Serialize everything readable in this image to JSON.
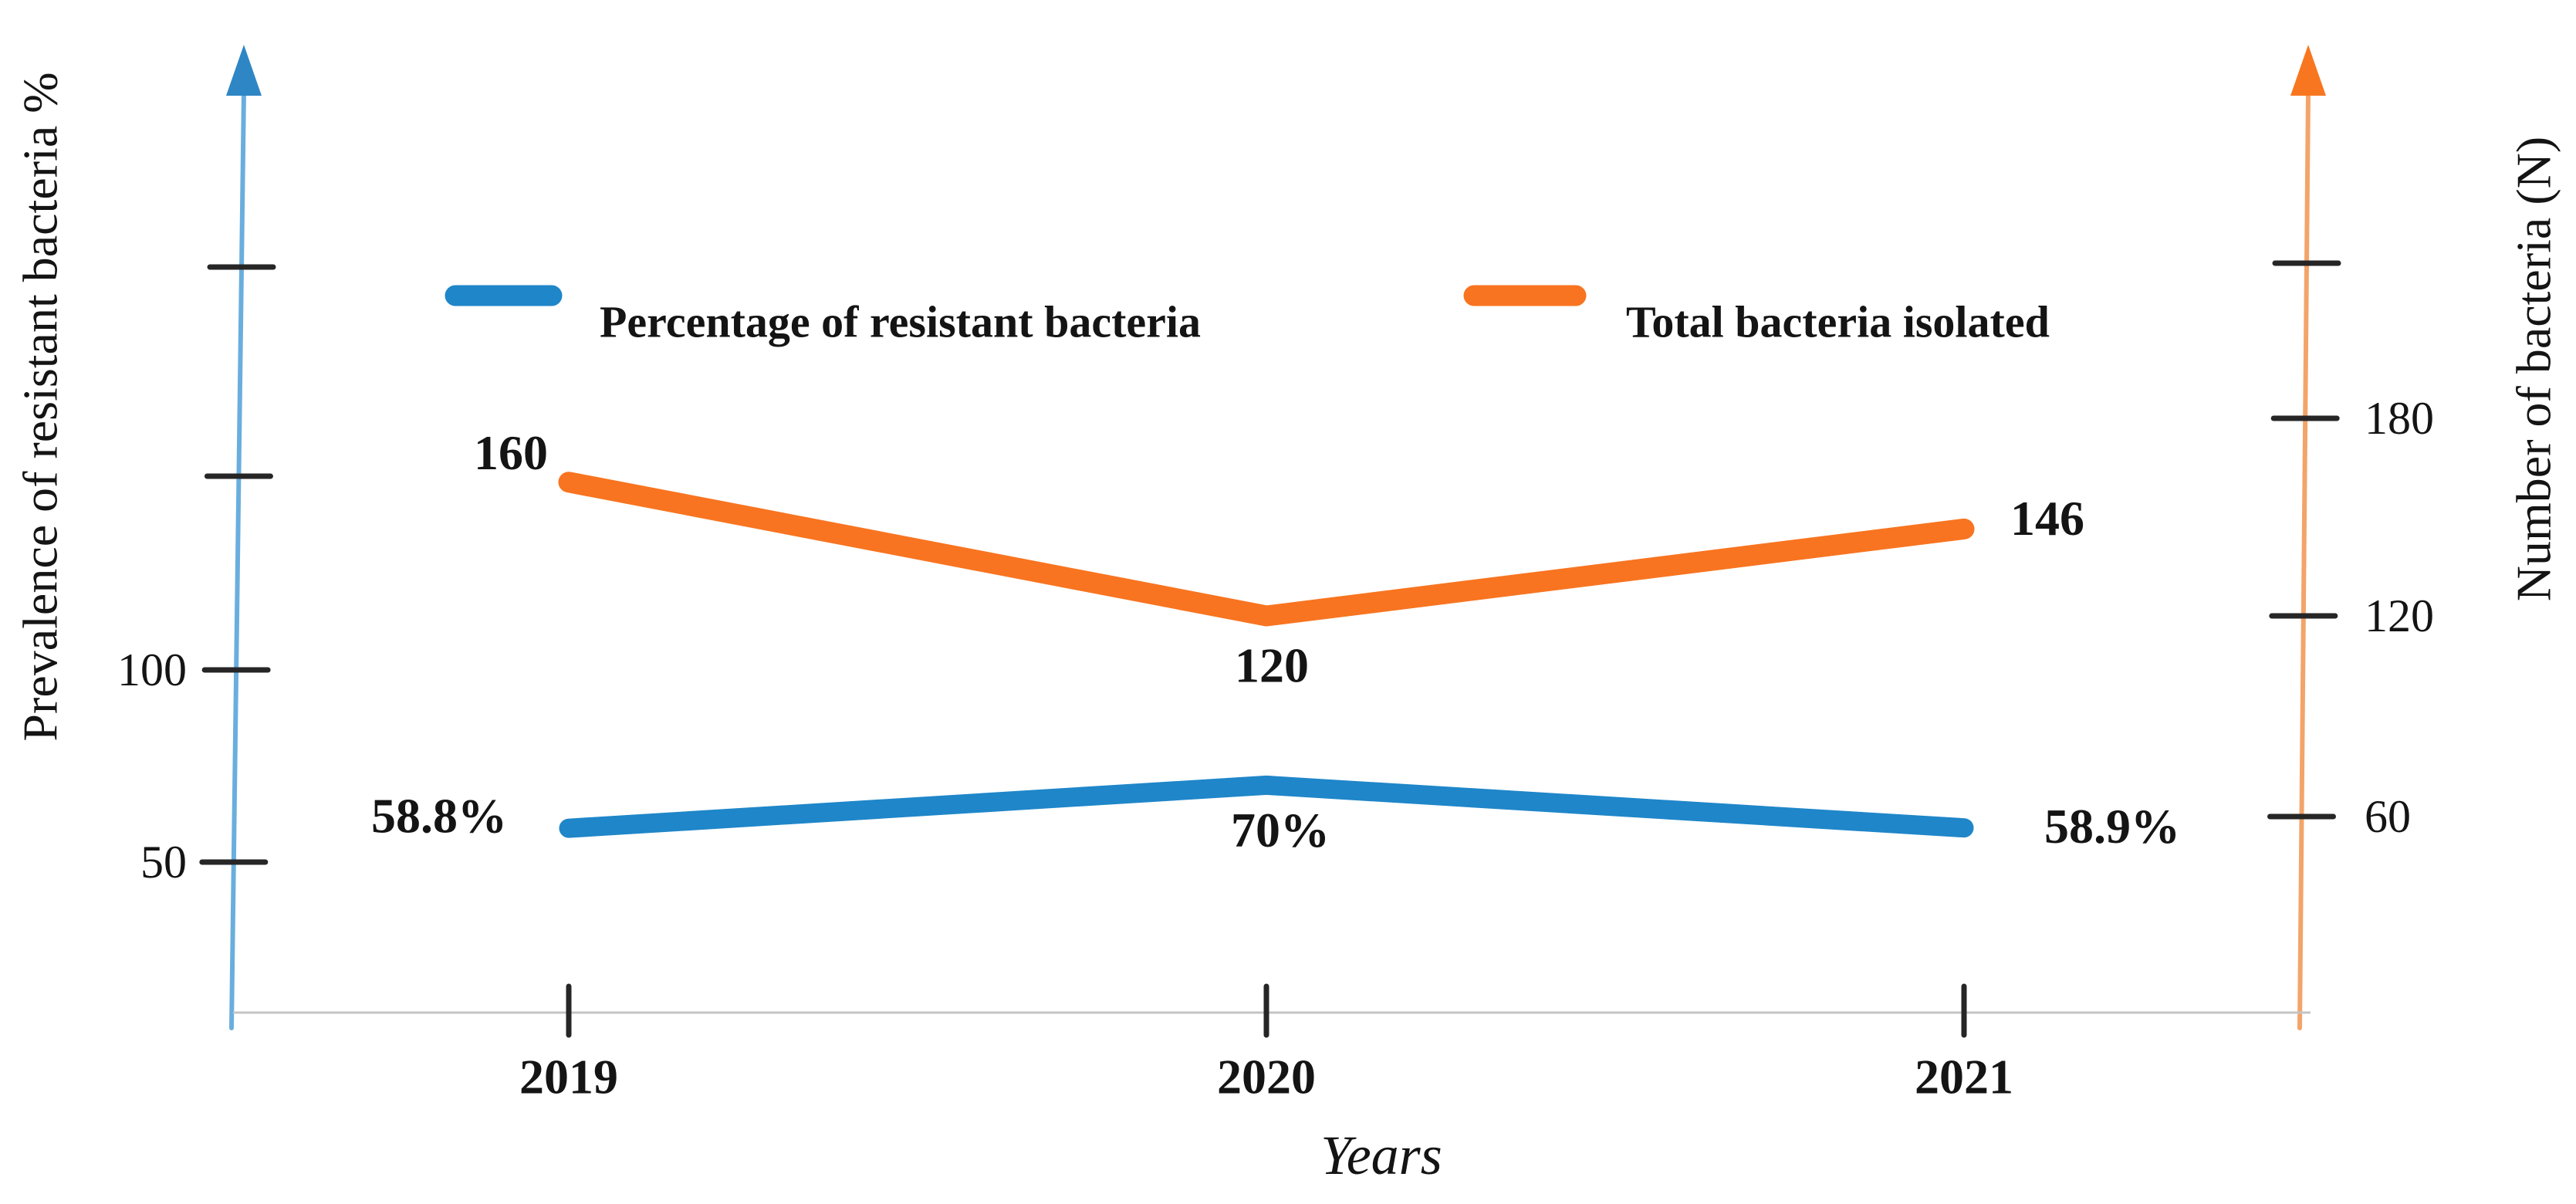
{
  "chart_data": {
    "type": "line",
    "categories": [
      "2019",
      "2020",
      "2021"
    ],
    "xlabel": "Years",
    "grid": false,
    "legend_position": "top-inside",
    "series": [
      {
        "name": "Percentage of resistant bacteria",
        "axis": "left",
        "values": [
          58.8,
          70,
          58.9
        ],
        "point_labels": [
          "58.8%",
          "70%",
          "58.9%"
        ],
        "color": "#1f86c9"
      },
      {
        "name": "Total bacteria isolated",
        "axis": "right",
        "values": [
          160,
          120,
          146
        ],
        "point_labels": [
          "160",
          "120",
          "146"
        ],
        "color": "#f87420"
      }
    ],
    "left_axis": {
      "title": "Prevalence of resistant bacteria %",
      "range_shown": [
        0,
        220
      ],
      "ticks": [
        {
          "value": 200,
          "label": ""
        },
        {
          "value": 150,
          "label": ""
        },
        {
          "value": 100,
          "label": "100"
        },
        {
          "value": 50,
          "label": "50"
        }
      ],
      "line_color": "#6aaede",
      "arrow_color": "#2e86c5",
      "tick_color": "#262626"
    },
    "right_axis": {
      "title": "Number of bacteria (N)",
      "range_shown": [
        0,
        250
      ],
      "ticks": [
        {
          "value": 240,
          "label": ""
        },
        {
          "value": 180,
          "label": "180"
        },
        {
          "value": 120,
          "label": "120"
        },
        {
          "value": 60,
          "label": "60"
        }
      ],
      "line_color": "#f3a469",
      "arrow_color": "#f8761f",
      "tick_color": "#262626"
    },
    "baseline_color": "#c4c4c4",
    "text_color": "#141414"
  }
}
